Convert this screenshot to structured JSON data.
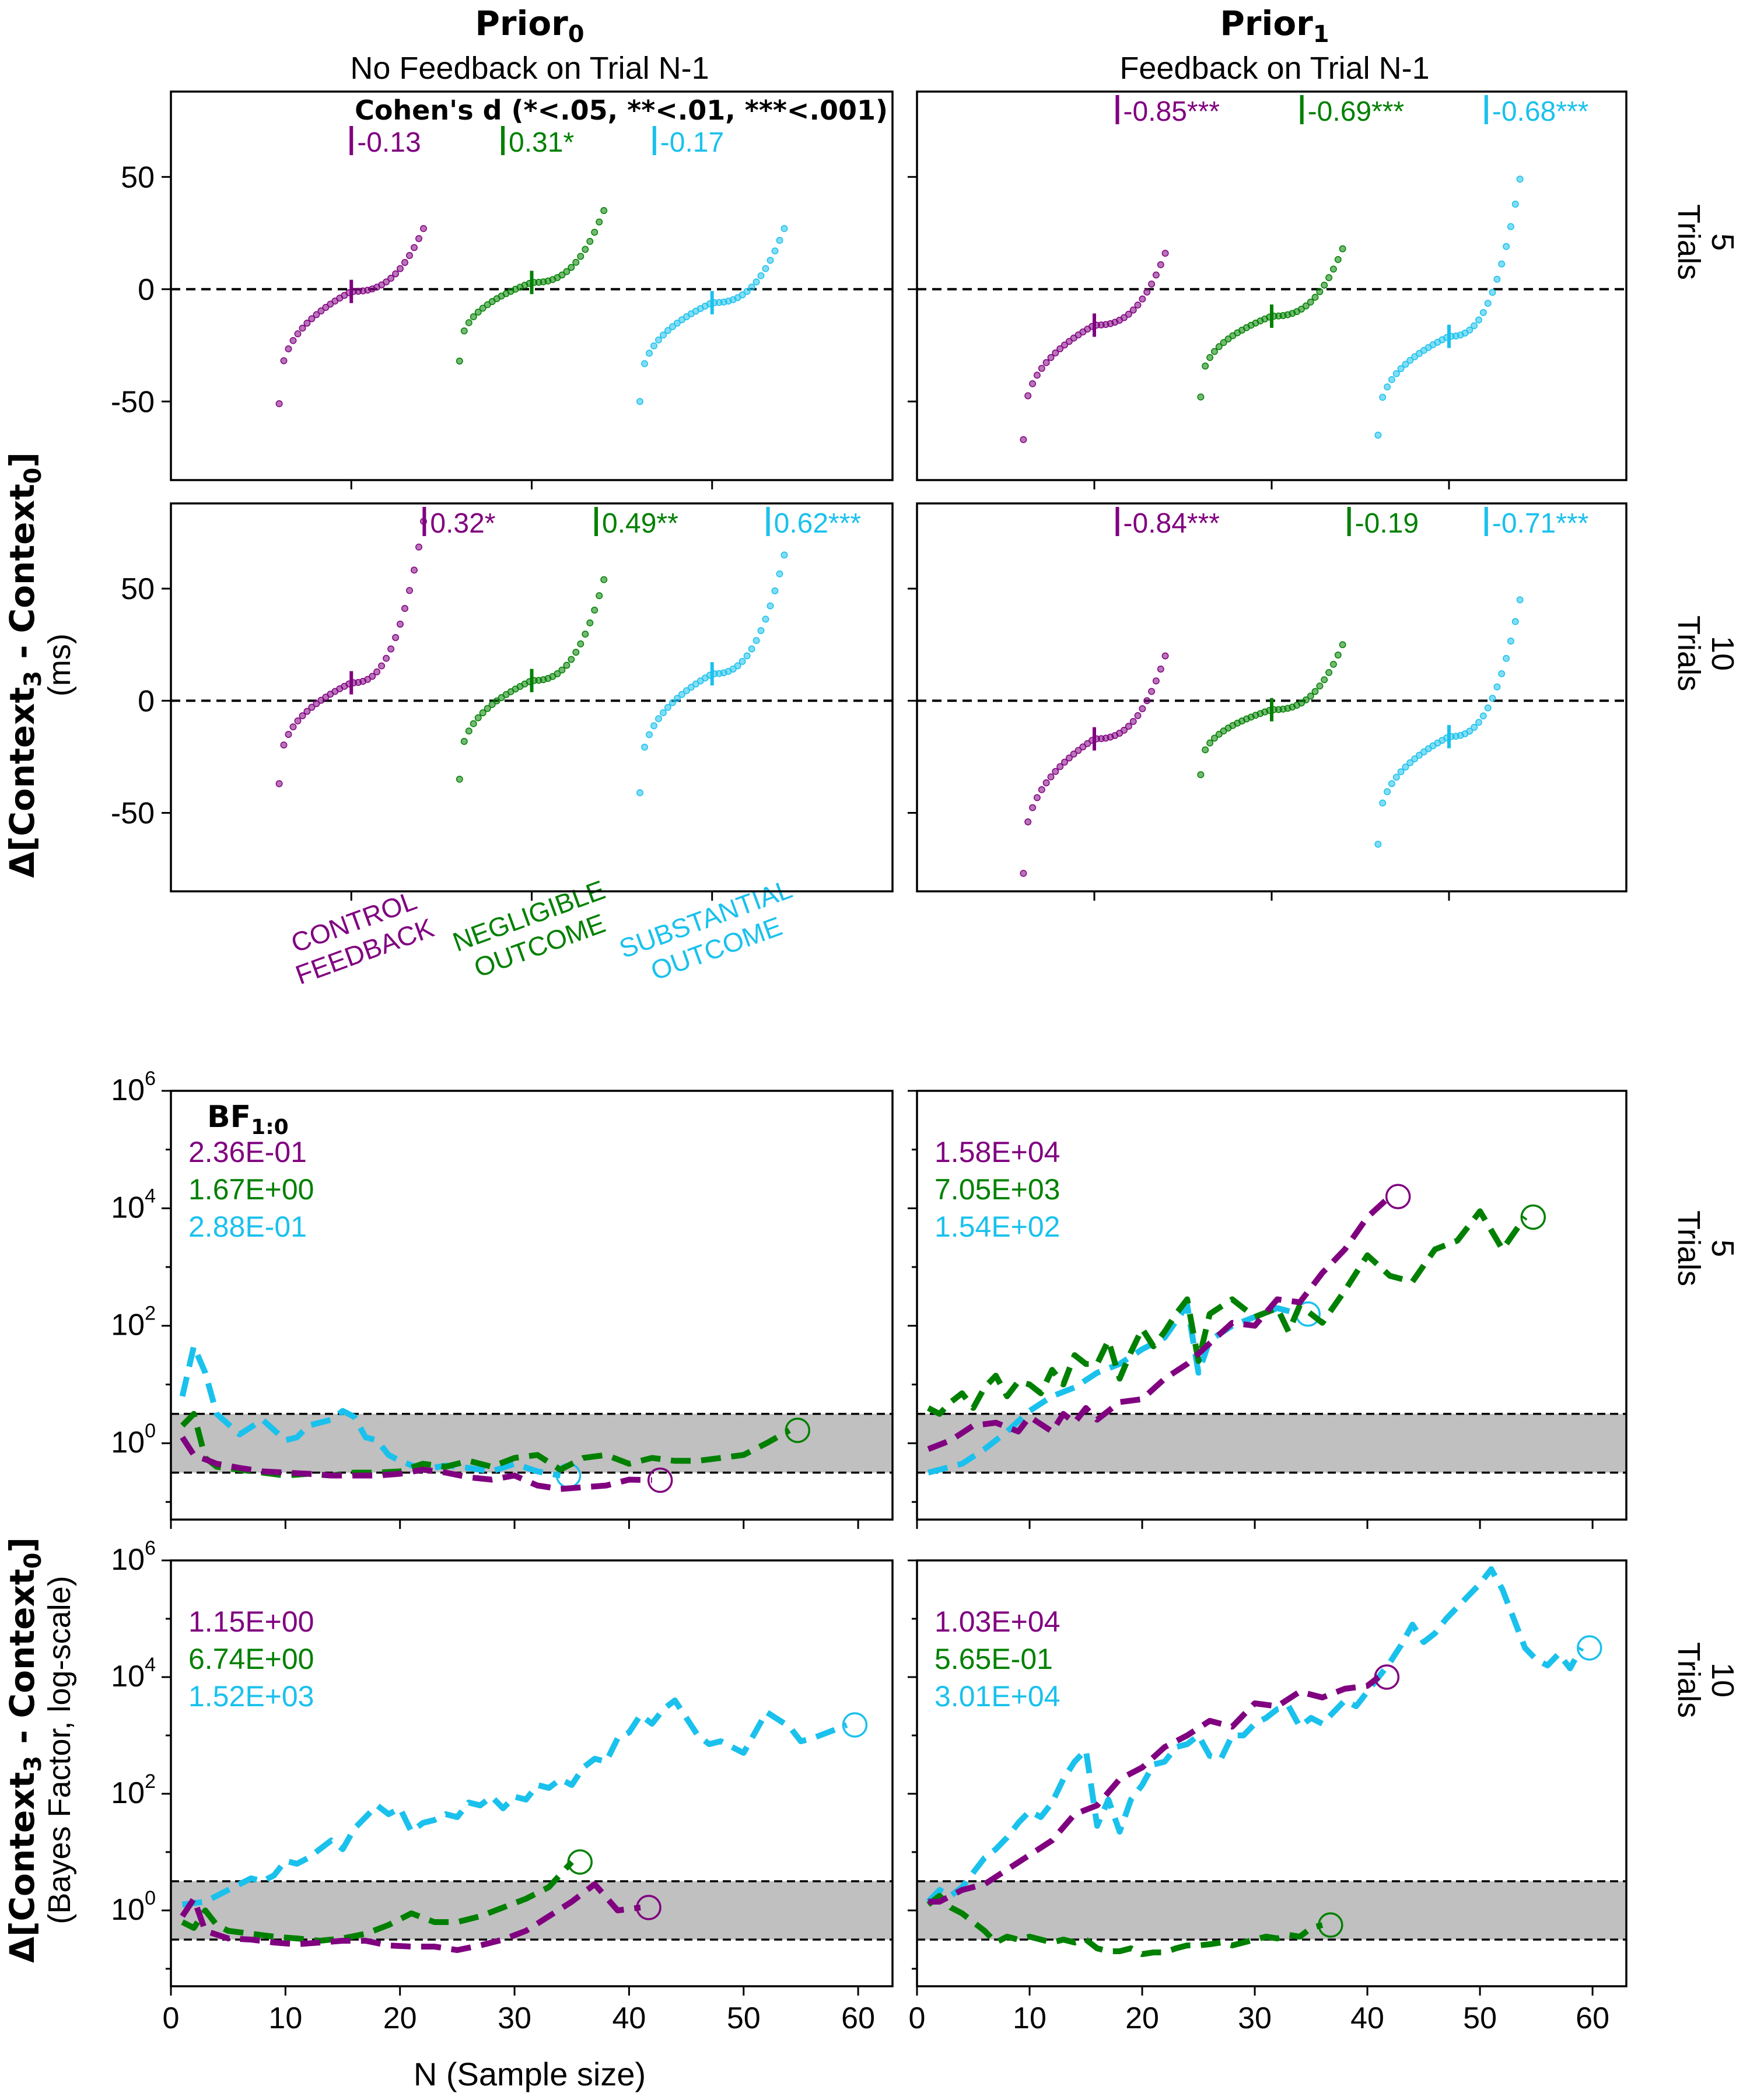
{
  "colors": {
    "control": "#800080",
    "negligible": "#008000",
    "substantial": "#1ac1ed",
    "band": "#c0c0c0"
  },
  "columns": [
    {
      "title": "Prior",
      "sub": "0",
      "subtitle": "No Feedback on Trial N-1"
    },
    {
      "title": "Prior",
      "sub": "1",
      "subtitle": "Feedback on Trial N-1"
    }
  ],
  "rows": [
    {
      "num": "5",
      "word": "Trials"
    },
    {
      "num": "10",
      "word": "Trials"
    }
  ],
  "ylabel_top": {
    "prefix": "Δ[Context",
    "s1": "3",
    "mid": " - Context",
    "s2": "0",
    "suffix": "]",
    "unit": "(ms)"
  },
  "ylabel_bottom": {
    "prefix": "Δ[Context",
    "s1": "3",
    "mid": " - Context",
    "s2": "0",
    "suffix": "]",
    "unit": "(Bayes Factor, log-scale)"
  },
  "cohens_title": "Cohen's d (*<.05, **<.01, ***<.001)",
  "bf_title": {
    "main": "BF",
    "sub": "1:0"
  },
  "category_labels": [
    {
      "line1": "CONTROL",
      "line2": "FEEDBACK"
    },
    {
      "line1": "NEGLIGIBLE",
      "line2": "OUTCOME"
    },
    {
      "line1": "SUBSTANTIAL",
      "line2": "OUTCOME"
    }
  ],
  "xlabel": "N (Sample size)",
  "chart_data": [
    {
      "type": "scatter",
      "panel": "Prior0-5Trials",
      "ylim": [
        -85,
        88
      ],
      "yticks": [
        -50,
        0,
        50
      ],
      "cohens_d": [
        "-0.13",
        "0.31*",
        "-0.17"
      ],
      "series": [
        {
          "name": "CONTROL FEEDBACK",
          "range": [
            -51,
            27
          ],
          "median": -1
        },
        {
          "name": "NEGLIGIBLE OUTCOME",
          "range": [
            -32,
            35
          ],
          "median": 3
        },
        {
          "name": "SUBSTANTIAL OUTCOME",
          "range": [
            -50,
            27
          ],
          "median": -6
        }
      ]
    },
    {
      "type": "scatter",
      "panel": "Prior1-5Trials",
      "ylim": [
        -85,
        88
      ],
      "yticks": [
        -50,
        0,
        50
      ],
      "cohens_d": [
        "-0.85***",
        "-0.69***",
        "-0.68***"
      ],
      "series": [
        {
          "name": "CONTROL FEEDBACK",
          "range": [
            -67,
            16
          ],
          "median": -16
        },
        {
          "name": "NEGLIGIBLE OUTCOME",
          "range": [
            -48,
            18
          ],
          "median": -12
        },
        {
          "name": "SUBSTANTIAL OUTCOME",
          "range": [
            -65,
            49
          ],
          "median": -21
        }
      ]
    },
    {
      "type": "scatter",
      "panel": "Prior0-10Trials",
      "ylim": [
        -85,
        88
      ],
      "yticks": [
        -50,
        0,
        50
      ],
      "cohens_d": [
        "0.32*",
        "0.49**",
        "0.62***"
      ],
      "series": [
        {
          "name": "CONTROL FEEDBACK",
          "range": [
            -37,
            80
          ],
          "median": 8
        },
        {
          "name": "NEGLIGIBLE OUTCOME",
          "range": [
            -35,
            54
          ],
          "median": 9
        },
        {
          "name": "SUBSTANTIAL OUTCOME",
          "range": [
            -41,
            65
          ],
          "median": 12
        }
      ]
    },
    {
      "type": "scatter",
      "panel": "Prior1-10Trials",
      "ylim": [
        -85,
        88
      ],
      "yticks": [
        -50,
        0,
        50
      ],
      "cohens_d": [
        "-0.84***",
        "-0.19",
        "-0.71***"
      ],
      "series": [
        {
          "name": "CONTROL FEEDBACK",
          "range": [
            -77,
            20
          ],
          "median": -17
        },
        {
          "name": "NEGLIGIBLE OUTCOME",
          "range": [
            -33,
            25
          ],
          "median": -4
        },
        {
          "name": "SUBSTANTIAL OUTCOME",
          "range": [
            -64,
            45
          ],
          "median": -16
        }
      ]
    },
    {
      "type": "line",
      "panel": "Prior0-5Trials",
      "xlim": [
        0,
        63
      ],
      "ylim_log10": [
        -1.3,
        6
      ],
      "xticks": [
        0,
        10,
        20,
        30,
        40,
        50,
        60
      ],
      "band_log10": [
        -0.5,
        0.5
      ],
      "bf": [
        "2.36E-01",
        "1.67E+00",
        "2.88E-01"
      ],
      "series": [
        {
          "name": "CONTROL FEEDBACK",
          "x": [
            1,
            2,
            4,
            6,
            8,
            10,
            12,
            14,
            16,
            18,
            20,
            22,
            24,
            26,
            28,
            30,
            32,
            34,
            36,
            38,
            40,
            42
          ],
          "log10_bf": [
            0.1,
            -0.2,
            -0.35,
            -0.42,
            -0.48,
            -0.5,
            -0.52,
            -0.55,
            -0.55,
            -0.55,
            -0.52,
            -0.45,
            -0.5,
            -0.58,
            -0.62,
            -0.55,
            -0.72,
            -0.78,
            -0.75,
            -0.72,
            -0.62,
            -0.63
          ]
        },
        {
          "name": "NEGLIGIBLE OUTCOME",
          "x": [
            1,
            2,
            3,
            4,
            6,
            8,
            10,
            12,
            14,
            16,
            18,
            20,
            22,
            24,
            26,
            28,
            30,
            32,
            34,
            36,
            38,
            40,
            42,
            44,
            46,
            48,
            50,
            52,
            54
          ],
          "log10_bf": [
            0.3,
            0.5,
            -0.25,
            -0.4,
            -0.45,
            -0.5,
            -0.55,
            -0.52,
            -0.55,
            -0.5,
            -0.5,
            -0.48,
            -0.35,
            -0.4,
            -0.3,
            -0.4,
            -0.25,
            -0.2,
            -0.45,
            -0.25,
            -0.2,
            -0.35,
            -0.25,
            -0.3,
            -0.3,
            -0.25,
            -0.2,
            0,
            0.22
          ]
        },
        {
          "name": "SUBSTANTIAL OUTCOME",
          "x": [
            1,
            2,
            3,
            4,
            6,
            8,
            10,
            11,
            12,
            14,
            15,
            16,
            17,
            18,
            19,
            20,
            22,
            24,
            26,
            28,
            30,
            32,
            34
          ],
          "log10_bf": [
            0.8,
            1.65,
            1.2,
            0.5,
            0.15,
            0.4,
            0.05,
            0.1,
            0.3,
            0.4,
            0.55,
            0.45,
            0.1,
            0.05,
            -0.2,
            -0.3,
            -0.45,
            -0.38,
            -0.42,
            -0.48,
            -0.35,
            -0.48,
            -0.55
          ]
        }
      ]
    },
    {
      "type": "line",
      "panel": "Prior1-5Trials",
      "xlim": [
        0,
        63
      ],
      "ylim_log10": [
        -1.3,
        6
      ],
      "xticks": [
        0,
        10,
        20,
        30,
        40,
        50,
        60
      ],
      "band_log10": [
        -0.5,
        0.5
      ],
      "bf": [
        "1.58E+04",
        "7.05E+03",
        "1.54E+02"
      ],
      "series": [
        {
          "name": "CONTROL FEEDBACK",
          "x": [
            1,
            3,
            5,
            7,
            9,
            10,
            12,
            13,
            14,
            15,
            16,
            18,
            20,
            22,
            24,
            26,
            28,
            30,
            32,
            34,
            36,
            38,
            40,
            42
          ],
          "log10_bf": [
            -0.1,
            0.05,
            0.3,
            0.35,
            0.2,
            0.45,
            0.2,
            0.5,
            0.35,
            0.6,
            0.4,
            0.7,
            0.75,
            1.1,
            1.35,
            1.7,
            2.05,
            2.0,
            2.45,
            2.4,
            2.9,
            3.3,
            3.85,
            4.2
          ]
        },
        {
          "name": "NEGLIGIBLE OUTCOME",
          "x": [
            1,
            2,
            3,
            4,
            5,
            6,
            7,
            8,
            9,
            10,
            11,
            12,
            13,
            14,
            15,
            16,
            17,
            18,
            19,
            20,
            21,
            22,
            23,
            24,
            25,
            26,
            28,
            30,
            32,
            33,
            34,
            36,
            38,
            40,
            42,
            44,
            46,
            48,
            50,
            52,
            54
          ],
          "log10_bf": [
            0.6,
            0.5,
            0.7,
            0.85,
            0.6,
            0.95,
            1.15,
            0.8,
            1.05,
            1.0,
            0.85,
            1.25,
            1.0,
            1.5,
            1.35,
            1.35,
            1.75,
            1.1,
            1.55,
            1.95,
            1.65,
            1.9,
            2.2,
            2.45,
            1.4,
            2.2,
            2.45,
            2.15,
            2.3,
            1.9,
            2.35,
            2.05,
            2.6,
            3.2,
            2.85,
            2.75,
            3.3,
            3.45,
            3.95,
            3.3,
            3.85
          ]
        },
        {
          "name": "SUBSTANTIAL OUTCOME",
          "x": [
            1,
            2,
            4,
            6,
            8,
            10,
            12,
            14,
            16,
            18,
            20,
            22,
            24,
            25,
            26,
            28,
            30,
            32,
            34
          ],
          "log10_bf": [
            -0.5,
            -0.45,
            -0.35,
            -0.1,
            0.2,
            0.55,
            0.8,
            0.95,
            1.2,
            1.35,
            1.6,
            1.8,
            2.35,
            1.2,
            1.75,
            2.0,
            2.15,
            2.3,
            2.2
          ]
        }
      ]
    },
    {
      "type": "line",
      "panel": "Prior0-10Trials",
      "xlim": [
        0,
        63
      ],
      "ylim_log10": [
        -1.3,
        6
      ],
      "xticks": [
        0,
        10,
        20,
        30,
        40,
        50,
        60
      ],
      "band_log10": [
        -0.5,
        0.5
      ],
      "bf": [
        "1.15E+00",
        "6.74E+00",
        "1.52E+03"
      ],
      "series": [
        {
          "name": "CONTROL FEEDBACK",
          "x": [
            1,
            2,
            3,
            5,
            7,
            9,
            11,
            13,
            15,
            17,
            19,
            21,
            23,
            25,
            27,
            29,
            31,
            33,
            35,
            37,
            39,
            41
          ],
          "log10_bf": [
            -0.1,
            0.2,
            -0.35,
            -0.48,
            -0.5,
            -0.55,
            -0.58,
            -0.55,
            -0.52,
            -0.52,
            -0.6,
            -0.62,
            -0.62,
            -0.68,
            -0.6,
            -0.5,
            -0.35,
            -0.1,
            0.15,
            0.45,
            0.0,
            0.05
          ]
        },
        {
          "name": "NEGLIGIBLE OUTCOME",
          "x": [
            1,
            2,
            3,
            4,
            5,
            7,
            9,
            11,
            13,
            15,
            17,
            19,
            21,
            23,
            25,
            27,
            29,
            31,
            33,
            35
          ],
          "log10_bf": [
            -0.2,
            -0.3,
            0.0,
            -0.25,
            -0.35,
            -0.4,
            -0.45,
            -0.48,
            -0.52,
            -0.48,
            -0.4,
            -0.25,
            -0.05,
            -0.2,
            -0.2,
            -0.1,
            0.05,
            0.2,
            0.4,
            0.83
          ]
        },
        {
          "name": "SUBSTANTIAL OUTCOME",
          "x": [
            1,
            3,
            5,
            6,
            7,
            8,
            9,
            10,
            11,
            12,
            13,
            14,
            15,
            16,
            17,
            18,
            19,
            20,
            21,
            22,
            23,
            24,
            25,
            26,
            27,
            28,
            29,
            30,
            31,
            32,
            33,
            34,
            35,
            36,
            37,
            38,
            39,
            40,
            41,
            42,
            43,
            44,
            45,
            46,
            47,
            48,
            50,
            52,
            54,
            55,
            56,
            58,
            59
          ],
          "log10_bf": [
            0.1,
            0.15,
            0.35,
            0.45,
            0.55,
            0.5,
            0.6,
            0.85,
            0.8,
            0.9,
            1.05,
            1.2,
            1.05,
            1.4,
            1.6,
            1.8,
            1.65,
            1.75,
            1.35,
            1.5,
            1.55,
            1.65,
            1.6,
            1.85,
            1.8,
            1.95,
            1.75,
            1.95,
            1.9,
            2.15,
            2.1,
            2.25,
            2.15,
            2.45,
            2.6,
            2.55,
            2.95,
            3.05,
            3.35,
            3.2,
            3.45,
            3.6,
            3.3,
            3.0,
            2.85,
            2.9,
            2.7,
            3.4,
            3.15,
            2.9,
            2.95,
            3.1,
            3.18
          ]
        }
      ]
    },
    {
      "type": "line",
      "panel": "Prior1-10Trials",
      "xlim": [
        0,
        63
      ],
      "ylim_log10": [
        -1.3,
        6
      ],
      "xticks": [
        0,
        10,
        20,
        30,
        40,
        50,
        60
      ],
      "band_log10": [
        -0.5,
        0.5
      ],
      "bf": [
        "1.03E+04",
        "5.65E-01",
        "3.01E+04"
      ],
      "series": [
        {
          "name": "CONTROL FEEDBACK",
          "x": [
            1,
            2,
            4,
            6,
            8,
            10,
            12,
            14,
            16,
            18,
            20,
            22,
            24,
            26,
            28,
            30,
            32,
            34,
            36,
            38,
            40,
            41
          ],
          "log10_bf": [
            0.15,
            0.15,
            0.35,
            0.45,
            0.7,
            0.95,
            1.2,
            1.65,
            1.8,
            2.25,
            2.45,
            2.8,
            3.0,
            3.25,
            3.15,
            3.55,
            3.5,
            3.75,
            3.65,
            3.8,
            3.85,
            4.0
          ]
        },
        {
          "name": "NEGLIGIBLE OUTCOME",
          "x": [
            1,
            2,
            3,
            4,
            5,
            6,
            7,
            8,
            9,
            10,
            11,
            12,
            13,
            14,
            15,
            16,
            17,
            18,
            19,
            20,
            21,
            22,
            23,
            24,
            25,
            26,
            27,
            28,
            29,
            30,
            31,
            32,
            33,
            34,
            35,
            36
          ],
          "log10_bf": [
            0.1,
            0.25,
            0.05,
            -0.05,
            -0.2,
            -0.35,
            -0.55,
            -0.45,
            -0.5,
            -0.45,
            -0.5,
            -0.55,
            -0.5,
            -0.55,
            -0.5,
            -0.65,
            -0.7,
            -0.7,
            -0.65,
            -0.75,
            -0.72,
            -0.72,
            -0.65,
            -0.6,
            -0.6,
            -0.58,
            -0.55,
            -0.6,
            -0.55,
            -0.5,
            -0.45,
            -0.48,
            -0.42,
            -0.45,
            -0.3,
            -0.25
          ]
        },
        {
          "name": "SUBSTANTIAL OUTCOME",
          "x": [
            1,
            2,
            3,
            4,
            5,
            6,
            7,
            8,
            9,
            10,
            11,
            12,
            13,
            14,
            15,
            16,
            17,
            18,
            19,
            20,
            21,
            22,
            23,
            24,
            25,
            26,
            27,
            28,
            29,
            30,
            31,
            32,
            33,
            34,
            35,
            36,
            37,
            38,
            39,
            40,
            41,
            42,
            43,
            44,
            45,
            46,
            47,
            48,
            49,
            50,
            51,
            52,
            53,
            54,
            55,
            56,
            57,
            58,
            59
          ],
          "log10_bf": [
            0.15,
            0.35,
            0.25,
            0.4,
            0.65,
            0.9,
            1.05,
            1.25,
            1.5,
            1.7,
            1.6,
            1.85,
            2.25,
            2.55,
            2.75,
            1.45,
            1.9,
            1.35,
            1.9,
            2.15,
            2.5,
            2.55,
            2.8,
            2.85,
            3.0,
            2.65,
            2.6,
            3.0,
            3.0,
            3.2,
            3.3,
            3.45,
            3.5,
            3.15,
            3.3,
            3.2,
            3.4,
            3.6,
            3.5,
            3.75,
            4.0,
            4.25,
            4.55,
            4.9,
            4.6,
            4.75,
            5.0,
            5.2,
            5.4,
            5.6,
            5.85,
            5.5,
            5.0,
            4.5,
            4.3,
            4.2,
            4.4,
            4.15,
            4.5
          ]
        }
      ]
    }
  ]
}
